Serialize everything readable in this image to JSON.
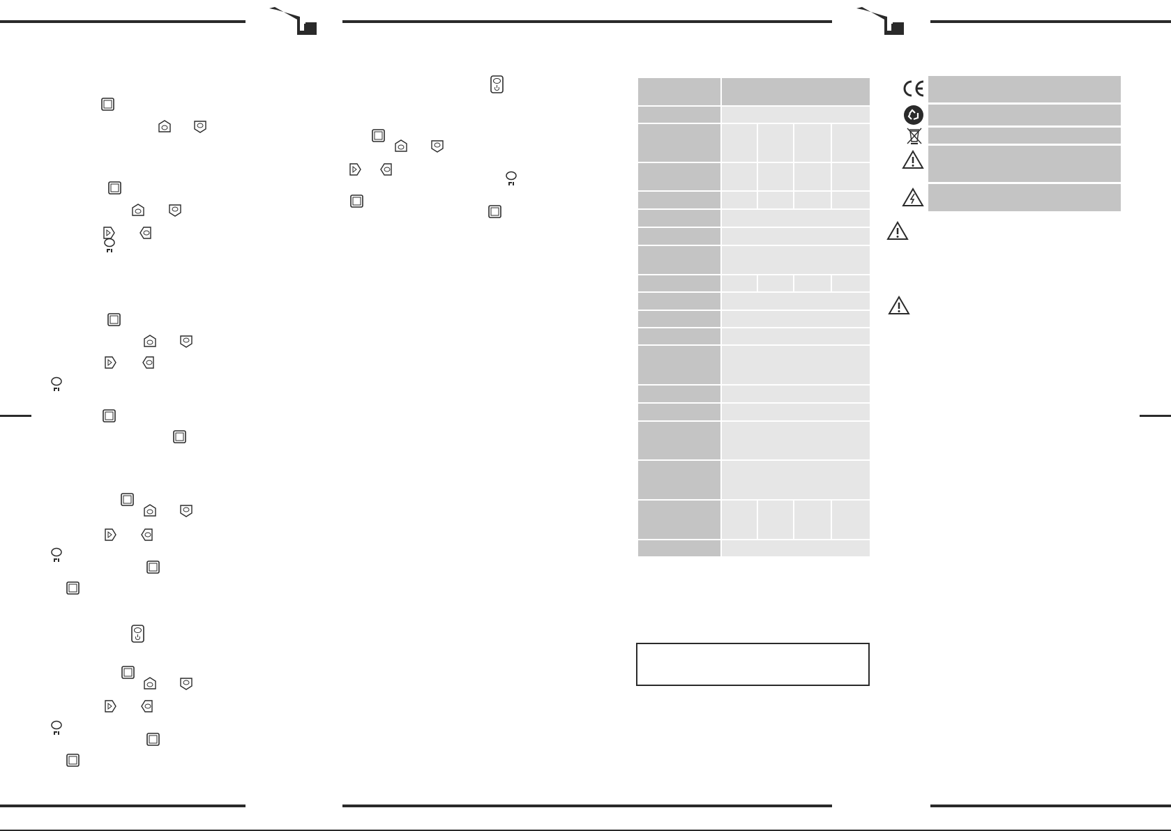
{
  "page": {
    "background": "#ffffff",
    "rule_color": "#2a2a2a",
    "cell_dark": "#c4c4c4",
    "cell_light": "#e6e6e6"
  },
  "icons": {
    "logo": "brand-logo",
    "menu_button": "square-button-icon",
    "up_arrow": "up-arrow-button-icon",
    "down_arrow": "down-arrow-button-icon",
    "right_arrow": "right-arrow-button-icon",
    "left_arrow": "left-arrow-button-icon",
    "program_button": "p1-button-icon",
    "power_button": "power-button-icon",
    "ce": "ce-mark-icon",
    "recycle": "recycle-icon",
    "weee": "crossed-bin-icon",
    "warning": "warning-triangle-icon",
    "electric": "electric-hazard-icon"
  }
}
